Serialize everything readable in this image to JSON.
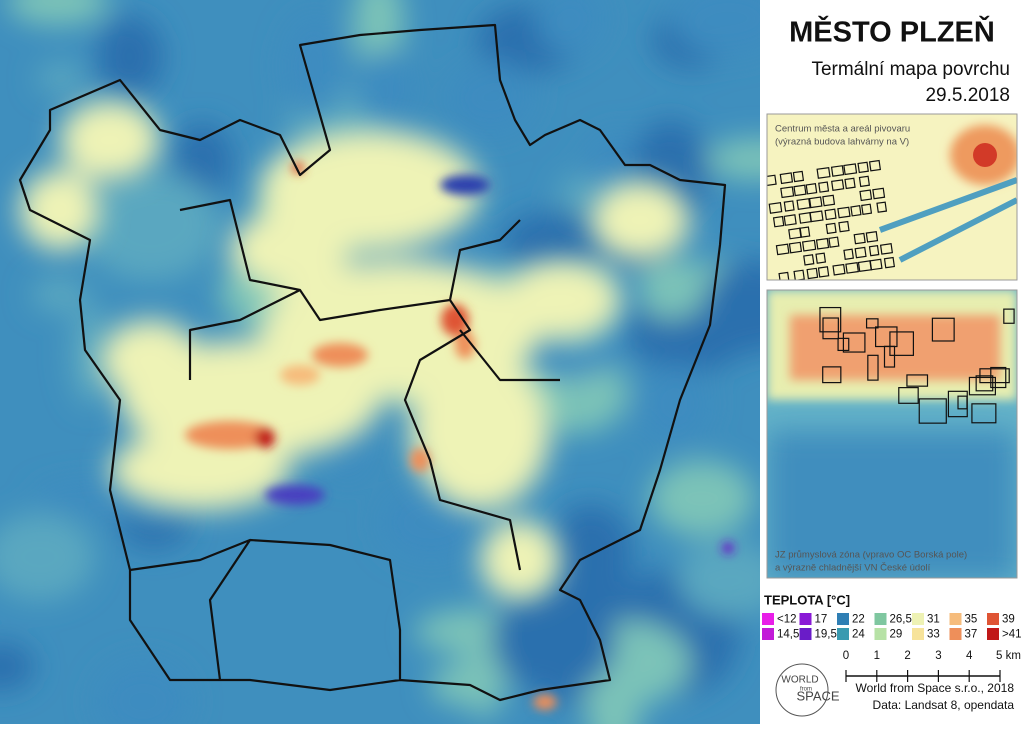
{
  "title": "MĚSTO PLZEŇ",
  "subtitle": "Termální mapa povrchu",
  "date": "29.5.2018",
  "insets": [
    {
      "caption_lines": [
        "Centrum města a areál pivovaru",
        "(výrazná budova lahvárny na V)"
      ]
    },
    {
      "caption_lines": [
        "JZ průmyslová zóna (vpravo OC Borská pole)",
        "a výrazně chladnější VN České údolí"
      ]
    }
  ],
  "legend": {
    "title": "TEPLOTA [°C]",
    "items": [
      {
        "label": "<12",
        "color": "#e81ee8"
      },
      {
        "label": "14,5",
        "color": "#c21ad8"
      },
      {
        "label": "17",
        "color": "#8a1ad6"
      },
      {
        "label": "19,5",
        "color": "#6a1cc8"
      },
      {
        "label": "22",
        "color": "#2f7fb4"
      },
      {
        "label": "24",
        "color": "#3a9ab0"
      },
      {
        "label": "26,5",
        "color": "#7fc7a0"
      },
      {
        "label": "29",
        "color": "#b7e2a6"
      },
      {
        "label": "31",
        "color": "#eef2b4"
      },
      {
        "label": "33",
        "color": "#f7e39a"
      },
      {
        "label": "35",
        "color": "#f6bc7c"
      },
      {
        "label": "37",
        "color": "#ee8f5a"
      },
      {
        "label": "39",
        "color": "#df5434"
      },
      {
        "label": ">41",
        "color": "#c01818"
      }
    ]
  },
  "scale": {
    "labels": [
      "0",
      "1",
      "2",
      "3",
      "4",
      "5 km"
    ]
  },
  "logo": {
    "lines": [
      "WORLD",
      "from",
      "SPACE"
    ]
  },
  "credits": [
    "World from Space s.r.o., 2018",
    "Data: Landsat 8, opendata"
  ]
}
